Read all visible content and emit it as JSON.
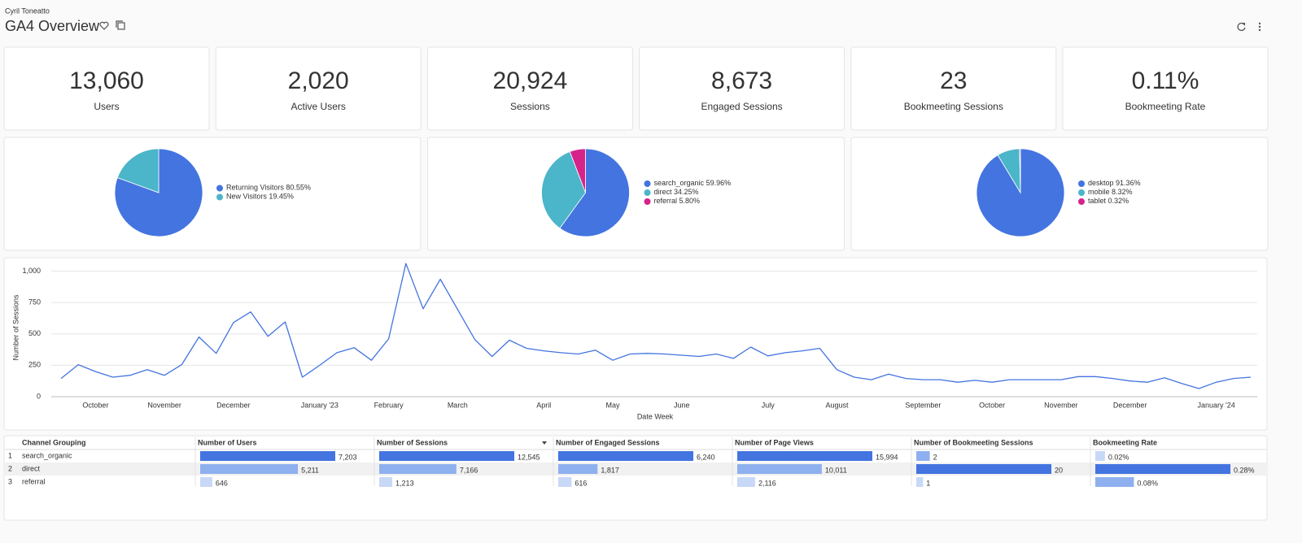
{
  "header": {
    "owner": "Cyril Toneatto",
    "title": "GA4 Overview"
  },
  "kpis": [
    {
      "value": "13,060",
      "label": "Users"
    },
    {
      "value": "2,020",
      "label": "Active Users"
    },
    {
      "value": "20,924",
      "label": "Sessions"
    },
    {
      "value": "8,673",
      "label": "Engaged Sessions"
    },
    {
      "value": "23",
      "label": "Bookmeeting Sessions"
    },
    {
      "value": "0.11%",
      "label": "Bookmeeting Rate"
    }
  ],
  "chart_data": [
    {
      "type": "pie",
      "categories": [
        "Returning Visitors",
        "New Visitors"
      ],
      "values": [
        80.55,
        19.45
      ],
      "value_labels": [
        "80.55%",
        "19.45%"
      ],
      "colors": [
        "#4374e0",
        "#4bb5c9"
      ],
      "legend": "right"
    },
    {
      "type": "pie",
      "categories": [
        "search_organic",
        "direct",
        "referral"
      ],
      "values": [
        59.96,
        34.25,
        5.8
      ],
      "value_labels": [
        "59.96%",
        "34.25%",
        "5.80%"
      ],
      "colors": [
        "#4374e0",
        "#4bb5c9",
        "#d6238a"
      ],
      "legend": "right"
    },
    {
      "type": "pie",
      "categories": [
        "desktop",
        "mobile",
        "tablet"
      ],
      "values": [
        91.36,
        8.32,
        0.32
      ],
      "value_labels": [
        "91.36%",
        "8.32%",
        "0.32%"
      ],
      "colors": [
        "#4374e0",
        "#4bb5c9",
        "#d6238a"
      ],
      "legend": "right"
    },
    {
      "type": "line",
      "x_label": "Date Week",
      "y_label": "Number of Sessions",
      "color": "#4374e0",
      "grid": true,
      "ylim": [
        0,
        1100
      ],
      "yticks": [
        0,
        250,
        500,
        750,
        {
          "value": 1000,
          "label": "1,000"
        }
      ],
      "categories": [
        null,
        null,
        "October",
        null,
        null,
        null,
        "November",
        null,
        null,
        null,
        "December",
        null,
        null,
        null,
        null,
        "January '23",
        null,
        null,
        null,
        "February",
        null,
        null,
        null,
        "March",
        null,
        null,
        null,
        null,
        "April",
        null,
        null,
        null,
        "May",
        null,
        null,
        null,
        "June",
        null,
        null,
        null,
        null,
        "July",
        null,
        null,
        null,
        "August",
        null,
        null,
        null,
        null,
        "September",
        null,
        null,
        null,
        "October",
        null,
        null,
        null,
        "November",
        null,
        null,
        null,
        "December",
        null,
        null,
        null,
        null,
        "January '24",
        null,
        null
      ],
      "values": [
        145,
        255,
        200,
        155,
        170,
        215,
        170,
        255,
        475,
        345,
        590,
        675,
        480,
        595,
        155,
        250,
        350,
        390,
        290,
        460,
        1060,
        700,
        935,
        695,
        455,
        320,
        450,
        385,
        365,
        350,
        340,
        370,
        290,
        340,
        345,
        340,
        330,
        320,
        340,
        305,
        395,
        325,
        350,
        365,
        385,
        215,
        155,
        135,
        180,
        145,
        135,
        135,
        115,
        130,
        115,
        135,
        135,
        135,
        135,
        160,
        160,
        145,
        125,
        115,
        150,
        105,
        65,
        115,
        145,
        155
      ]
    }
  ],
  "table": {
    "columns": [
      "Channel Grouping",
      "Number of Users",
      "Number of Sessions",
      "Number of Engaged Sessions",
      "Number of Page Views",
      "Number of Bookmeeting Sessions",
      "Bookmeeting Rate"
    ],
    "rows": [
      {
        "index": "1",
        "channel": "search_organic",
        "cells": [
          {
            "value": 7203,
            "label": "7,203"
          },
          {
            "value": 12545,
            "label": "12,545"
          },
          {
            "value": 6240,
            "label": "6,240"
          },
          {
            "value": 15994,
            "label": "15,994"
          },
          {
            "value": 2,
            "label": "2"
          },
          {
            "value": 0.02,
            "label": "0.02%"
          }
        ]
      },
      {
        "index": "2",
        "channel": "direct",
        "cells": [
          {
            "value": 5211,
            "label": "5,211"
          },
          {
            "value": 7166,
            "label": "7,166"
          },
          {
            "value": 1817,
            "label": "1,817"
          },
          {
            "value": 10011,
            "label": "10,011"
          },
          {
            "value": 20,
            "label": "20"
          },
          {
            "value": 0.28,
            "label": "0.28%"
          }
        ]
      },
      {
        "index": "3",
        "channel": "referral",
        "cells": [
          {
            "value": 646,
            "label": "646"
          },
          {
            "value": 1213,
            "label": "1,213"
          },
          {
            "value": 616,
            "label": "616"
          },
          {
            "value": 2116,
            "label": "2,116"
          },
          {
            "value": 1,
            "label": "1"
          },
          {
            "value": 0.08,
            "label": "0.08%"
          }
        ]
      }
    ]
  }
}
